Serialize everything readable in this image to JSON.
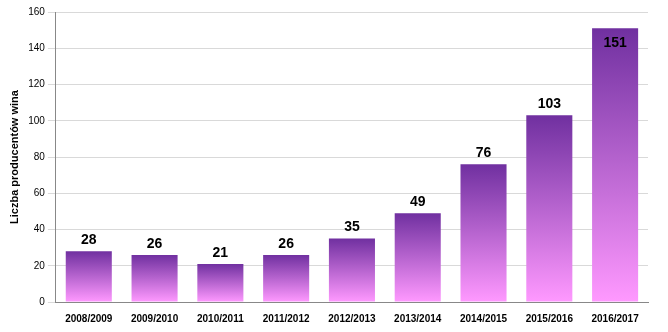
{
  "chart_data": {
    "type": "bar",
    "y_label": "Liczba producentów wina",
    "categories": [
      "2008/2009",
      "2009/2010",
      "2010/2011",
      "2011/2012",
      "2012/2013",
      "2013/2014",
      "2014/2015",
      "2015/2016",
      "2016/2017"
    ],
    "values": [
      28,
      26,
      21,
      26,
      35,
      49,
      76,
      103,
      151
    ],
    "color": "#7030a0",
    "ylim": [
      0,
      160
    ],
    "yticks": [
      0,
      20,
      40,
      60,
      80,
      100,
      120,
      140,
      160
    ],
    "grid": true,
    "data_labels": true
  }
}
